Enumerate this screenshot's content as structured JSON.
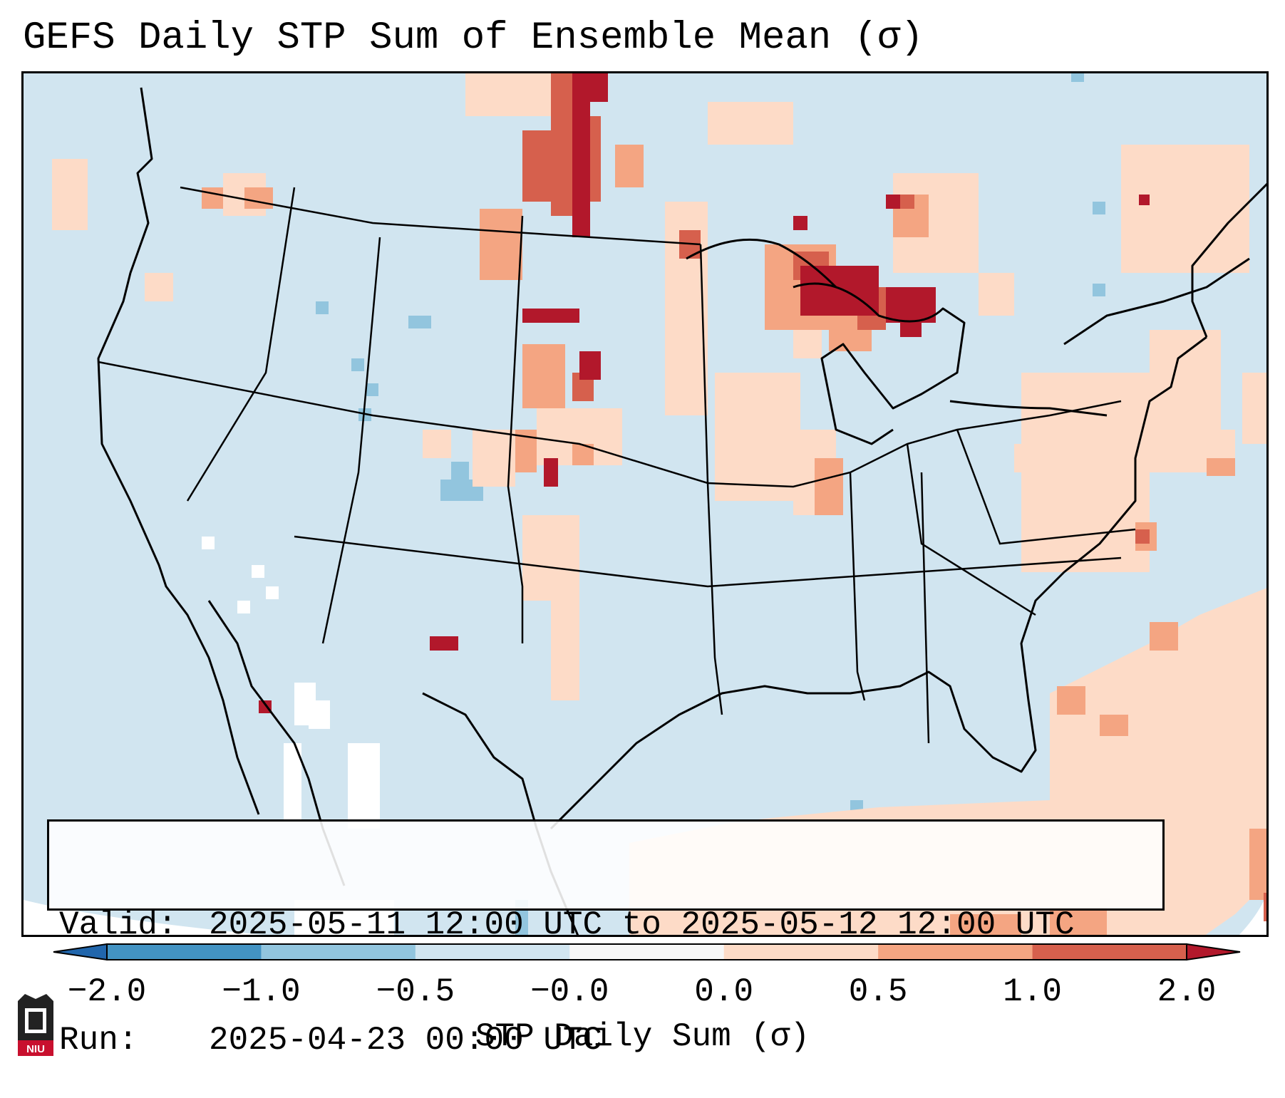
{
  "title": "GEFS Daily STP Sum of Ensemble Mean (σ)",
  "info": {
    "valid_label": "Valid:",
    "valid_value": "2025-05-11 12:00 UTC to 2025-05-12 12:00 UTC",
    "run_label": "Run:",
    "run_value": "2025-04-23 00:00 UTC"
  },
  "colorbar": {
    "label": "STP Daily Sum (σ)",
    "ticks": [
      "−2.0",
      "−1.0",
      "−0.5",
      "−0.0",
      "0.0",
      "0.5",
      "1.0",
      "2.0"
    ],
    "colors": {
      "under": "#2166ac",
      "neg_2_1": "#4393c3",
      "neg_1_05": "#92c5de",
      "neg_05_0": "#d1e5f0",
      "zero": "#f7f7f7",
      "pos_0_05": "#fddbc7",
      "pos_05_1": "#f4a582",
      "pos_1_2": "#d6604d",
      "over": "#b2182b"
    }
  },
  "logo": {
    "text": "NIU",
    "color": "#c8102e"
  }
}
